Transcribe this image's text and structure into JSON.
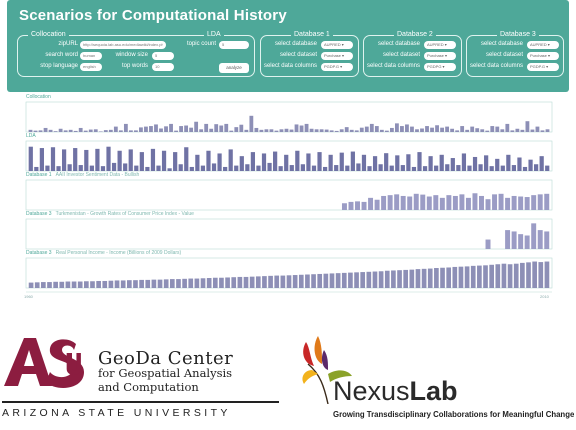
{
  "app": {
    "title": "Scenarios for Computational History",
    "collocation": {
      "title": "Collocation",
      "zipurl_label": "zipURL",
      "zipurl_value": "http://sequoia.lab.asu.edu/mediawiki/index.php",
      "search_word_label": "search word",
      "search_word_value": "human",
      "window_size_label": "window size",
      "window_size_value": "5",
      "stop_language_label": "stop language",
      "stop_language_value": "english",
      "top_words_label": "top words",
      "top_words_value": "10"
    },
    "lda": {
      "title": "LDA",
      "topic_count_label": "topic count",
      "topic_count_value": "5",
      "analyze_label": "analyze"
    },
    "databases": [
      {
        "title": "Database 1",
        "db_label": "select database",
        "db_value": "AUPRED ▾",
        "ds_label": "select dataset",
        "ds_value": "Purchase ▾",
        "col_label": "select data columns",
        "col_value": "PGDP.G ▾"
      },
      {
        "title": "Database 2",
        "db_label": "select database",
        "db_value": "AUPRED ▾",
        "ds_label": "select dataset",
        "ds_value": "Purchase ▾",
        "col_label": "select data columns",
        "col_value": "PGDPG ▾"
      },
      {
        "title": "Database 3",
        "db_label": "select database",
        "db_value": "AUPRED ▾",
        "ds_label": "select dataset",
        "ds_value": "Purchase ▾",
        "col_label": "select data columns",
        "col_value": "PGDP.G ▾"
      }
    ]
  },
  "chart_data": [
    {
      "type": "bar",
      "title": "Collocation",
      "subtitle": "",
      "color": "#8d8fb6",
      "values": [
        8,
        5,
        6,
        15,
        8,
        3,
        12,
        6,
        8,
        4,
        15,
        5,
        9,
        10,
        2,
        7,
        8,
        20,
        6,
        30,
        6,
        6,
        17,
        20,
        22,
        28,
        13,
        21,
        30,
        5,
        22,
        24,
        16,
        38,
        10,
        30,
        12,
        29,
        24,
        30,
        5,
        18,
        27,
        8,
        60,
        15,
        8,
        10,
        10,
        5,
        10,
        12,
        9,
        28,
        24,
        30,
        12,
        10,
        10,
        9,
        6,
        4,
        10,
        18,
        8,
        6,
        16,
        20,
        30,
        22,
        8,
        5,
        15,
        32,
        22,
        28,
        20,
        10,
        13,
        22,
        16,
        25,
        16,
        20,
        12,
        6,
        22,
        8,
        20,
        14,
        10,
        5,
        22,
        20,
        10,
        30,
        6,
        12,
        8,
        40,
        9,
        20,
        6,
        10
      ]
    },
    {
      "type": "bar",
      "title": "LDA",
      "subtitle": "",
      "color": "#6f72a4",
      "values": [
        90,
        15,
        85,
        20,
        88,
        18,
        80,
        25,
        85,
        22,
        78,
        20,
        82,
        18,
        90,
        30,
        75,
        28,
        80,
        20,
        70,
        15,
        82,
        20,
        75,
        10,
        70,
        25,
        88,
        15,
        60,
        20,
        75,
        28,
        65,
        15,
        80,
        20,
        55,
        25,
        70,
        20,
        65,
        30,
        72,
        18,
        60,
        22,
        75,
        25,
        65,
        20,
        70,
        15,
        60,
        22,
        68,
        20,
        72,
        28,
        60,
        18,
        55,
        25,
        66,
        20,
        58,
        22,
        62,
        15,
        70,
        18,
        55,
        20,
        60,
        25,
        48,
        22,
        65,
        20,
        52,
        25,
        58,
        18,
        45,
        20,
        60,
        22,
        50,
        15,
        42,
        25,
        55,
        20
      ]
    },
    {
      "type": "bar",
      "title": "Database 1",
      "subtitle": "AAII Investor Sentiment Data - Bullish",
      "color": "#9b9cc5",
      "x_start": 60,
      "values": [
        25,
        30,
        32,
        30,
        45,
        38,
        52,
        55,
        58,
        52,
        50,
        60,
        57,
        50,
        55,
        45,
        55,
        52,
        58,
        45,
        62,
        52,
        40,
        58,
        60,
        45,
        52,
        50,
        48,
        55,
        58,
        60
      ]
    },
    {
      "type": "bar",
      "title": "Database 3",
      "subtitle": "Turkmenistan - Growth Rates of Consumer Price Index - Value",
      "color": "#9b9cc5",
      "x_start": 60,
      "values": [
        0,
        0,
        0,
        0,
        0,
        0,
        0,
        0,
        0,
        0,
        0,
        0,
        0,
        0,
        0,
        0,
        0,
        0,
        0,
        0,
        0,
        0,
        35,
        0,
        0,
        70,
        65,
        55,
        50,
        95,
        70,
        65
      ]
    },
    {
      "type": "bar",
      "title": "Database 3",
      "subtitle": "Real Personal Income - Income (Billions of 2009 Dollars)",
      "color": "#8d8fb6",
      "values": [
        20,
        21,
        22,
        22,
        23,
        23,
        24,
        24,
        24,
        25,
        25,
        26,
        26,
        27,
        28,
        28,
        29,
        29,
        30,
        30,
        31,
        31,
        32,
        33,
        33,
        34,
        35,
        35,
        36,
        37,
        38,
        38,
        39,
        40,
        41,
        41,
        42,
        43,
        44,
        45,
        46,
        46,
        47,
        48,
        49,
        50,
        51,
        52,
        53,
        54,
        55,
        56,
        57,
        58,
        59,
        60,
        61,
        62,
        64,
        65,
        66,
        67,
        68,
        70,
        71,
        72,
        74,
        75,
        76,
        78,
        79,
        80,
        82,
        83,
        84,
        86,
        88,
        90,
        88,
        90,
        93,
        95,
        98,
        96,
        98
      ]
    }
  ],
  "axis": {
    "start": "1960",
    "end": "2010"
  },
  "logos": {
    "geoda_line1": "GeoDa Center",
    "geoda_line2": "for Geospatial Analysis",
    "geoda_line3": "and Computation",
    "asu_text": "ARIZONA STATE UNIVERSITY",
    "nexus_name_a": "Nexus",
    "nexus_name_b": "Lab",
    "nexus_tagline": "Growing Transdisciplinary Collaborations for Meaningful Change"
  }
}
